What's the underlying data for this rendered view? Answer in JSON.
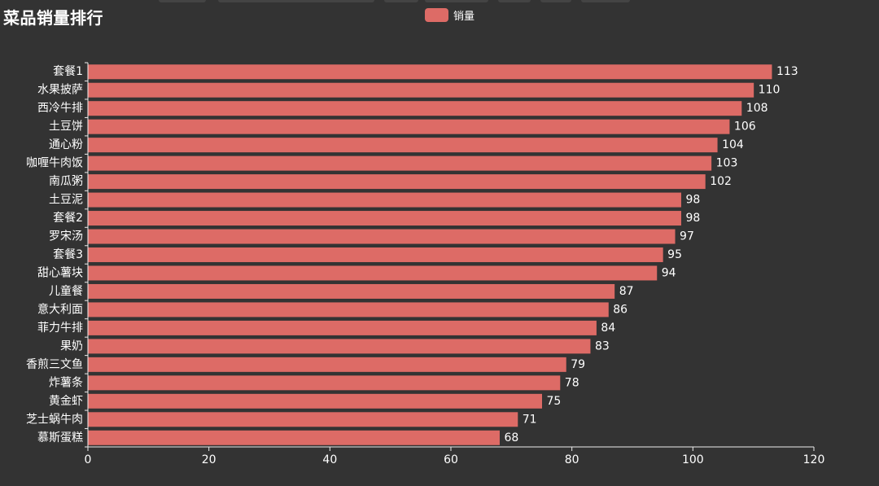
{
  "title": "菜品销量排行",
  "legend": {
    "label": "销量",
    "color": "#dd6b66"
  },
  "colors": {
    "background": "#333333",
    "bar": "#dd6b66",
    "axis": "#eeeeee",
    "text": "#ffffff"
  },
  "chart_data": {
    "type": "bar",
    "orientation": "horizontal",
    "title": "菜品销量排行",
    "xlim": [
      0,
      120
    ],
    "xticks": [
      0,
      20,
      40,
      60,
      80,
      100,
      120
    ],
    "grid": false,
    "legend_position": "top-center",
    "categories": [
      "套餐1",
      "水果披萨",
      "西冷牛排",
      "土豆饼",
      "通心粉",
      "咖喱牛肉饭",
      "南瓜粥",
      "土豆泥",
      "套餐2",
      "罗宋汤",
      "套餐3",
      "甜心薯块",
      "儿童餐",
      "意大利面",
      "菲力牛排",
      "果奶",
      "香煎三文鱼",
      "炸薯条",
      "黄金虾",
      "芝士蜗牛肉",
      "慕斯蛋糕"
    ],
    "series": [
      {
        "name": "销量",
        "values": [
          113,
          110,
          108,
          106,
          104,
          103,
          102,
          98,
          98,
          97,
          95,
          94,
          87,
          86,
          84,
          83,
          79,
          78,
          75,
          71,
          68
        ]
      }
    ]
  }
}
